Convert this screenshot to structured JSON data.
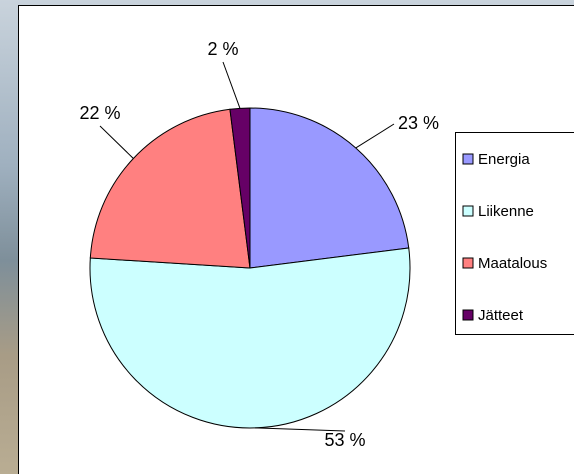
{
  "chart_data": {
    "type": "pie",
    "categories": [
      "Energia",
      "Liikenne",
      "Maatalous",
      "Jätteet"
    ],
    "values": [
      23,
      53,
      22,
      2
    ],
    "value_labels": [
      "23 %",
      "53 %",
      "22 %",
      "2 %"
    ],
    "colors": [
      "#9999ff",
      "#ccffff",
      "#ff8080",
      "#660066"
    ],
    "legend": "right"
  }
}
